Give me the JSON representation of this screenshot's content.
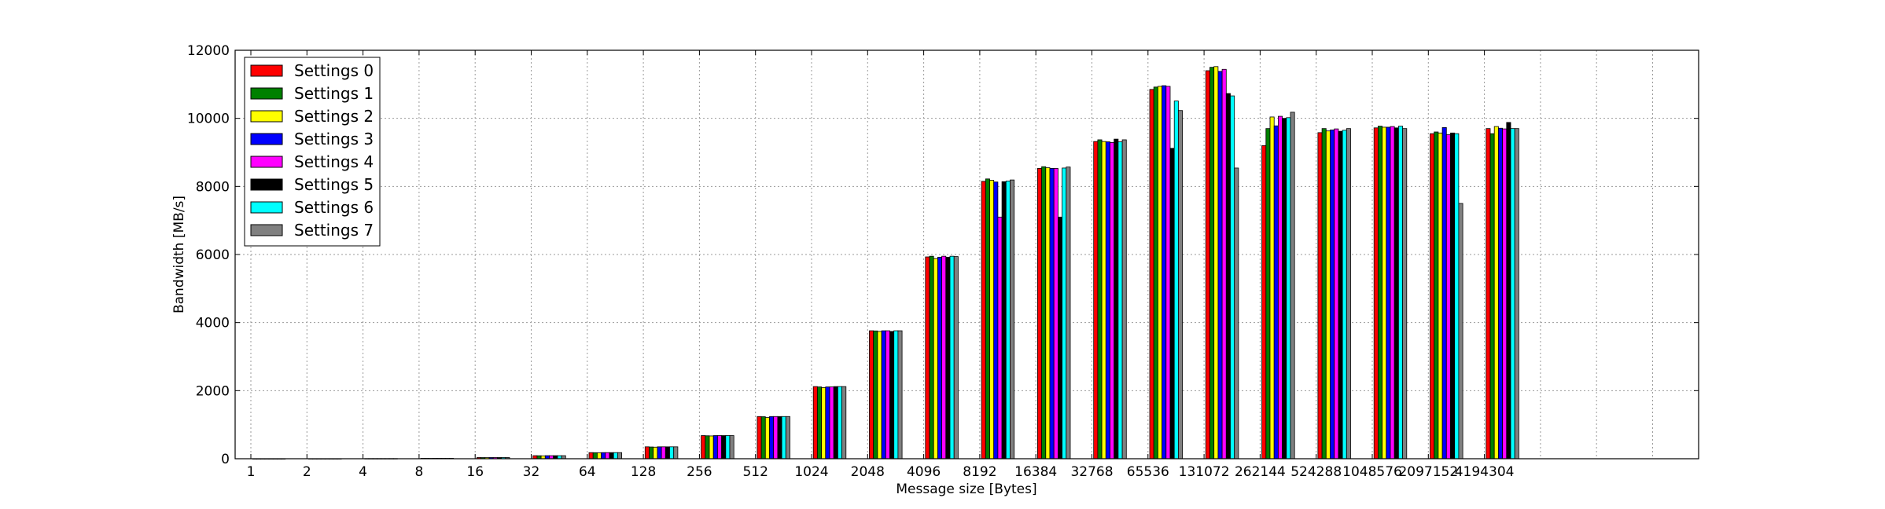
{
  "chart_data": {
    "type": "bar",
    "title": "",
    "xlabel": "Message size [Bytes]",
    "ylabel": "Bandwidth [MB/s]",
    "ylim": [
      0,
      12000
    ],
    "yticks": [
      0,
      2000,
      4000,
      6000,
      8000,
      10000,
      12000
    ],
    "grid": true,
    "legend_position": "top-left",
    "categories": [
      "1",
      "2",
      "4",
      "8",
      "16",
      "32",
      "64",
      "128",
      "256",
      "512",
      "1024",
      "2048",
      "4096",
      "8192",
      "16384",
      "32768",
      "65536",
      "131072",
      "262144",
      "524288",
      "1048576",
      "2097152",
      "4194304"
    ],
    "extra_empty_slots": 3,
    "series": [
      {
        "name": "Settings 0",
        "color": "#ff0000",
        "values": [
          1,
          2,
          5,
          12,
          35,
          90,
          180,
          350,
          680,
          1240,
          2120,
          3760,
          5930,
          8150,
          8530,
          9320,
          10850,
          11400,
          9200,
          9580,
          9720,
          9550,
          9700
        ]
      },
      {
        "name": "Settings 1",
        "color": "#008000",
        "values": [
          1,
          2,
          5,
          12,
          34,
          88,
          178,
          345,
          675,
          1235,
          2110,
          3755,
          5950,
          8220,
          8580,
          9370,
          10920,
          11500,
          9700,
          9700,
          9770,
          9600,
          9550
        ]
      },
      {
        "name": "Settings 2",
        "color": "#ffff00",
        "values": [
          1,
          2,
          5,
          11,
          33,
          85,
          175,
          340,
          670,
          1210,
          2090,
          3740,
          5880,
          8180,
          8550,
          9320,
          10940,
          11520,
          10040,
          9630,
          9740,
          9570,
          9760
        ]
      },
      {
        "name": "Settings 3",
        "color": "#0000ff",
        "values": [
          1,
          2,
          5,
          12,
          35,
          90,
          180,
          350,
          680,
          1240,
          2110,
          3760,
          5920,
          8130,
          8530,
          9310,
          10960,
          11380,
          9780,
          9660,
          9740,
          9730,
          9710
        ]
      },
      {
        "name": "Settings 4",
        "color": "#ff00ff",
        "values": [
          1,
          2,
          5,
          12,
          35,
          90,
          180,
          350,
          680,
          1240,
          2110,
          3760,
          5950,
          7100,
          8530,
          9290,
          10940,
          11440,
          10060,
          9690,
          9760,
          9520,
          9690
        ]
      },
      {
        "name": "Settings 5",
        "color": "#000000",
        "values": [
          1,
          2,
          5,
          12,
          35,
          90,
          180,
          350,
          680,
          1240,
          2120,
          3740,
          5920,
          8140,
          7100,
          9390,
          9120,
          10730,
          10000,
          9620,
          9720,
          9570,
          9880
        ]
      },
      {
        "name": "Settings 6",
        "color": "#00ffff",
        "values": [
          1,
          2,
          5,
          12,
          35,
          90,
          180,
          350,
          680,
          1240,
          2120,
          3760,
          5950,
          8160,
          8540,
          9310,
          10510,
          10660,
          10020,
          9650,
          9770,
          9550,
          9700
        ]
      },
      {
        "name": "Settings 7",
        "color": "#808080",
        "values": [
          1,
          2,
          5,
          12,
          35,
          90,
          180,
          350,
          680,
          1240,
          2120,
          3760,
          5940,
          8190,
          8570,
          9370,
          10230,
          8540,
          10180,
          9700,
          9700,
          7500,
          9700
        ]
      }
    ]
  }
}
